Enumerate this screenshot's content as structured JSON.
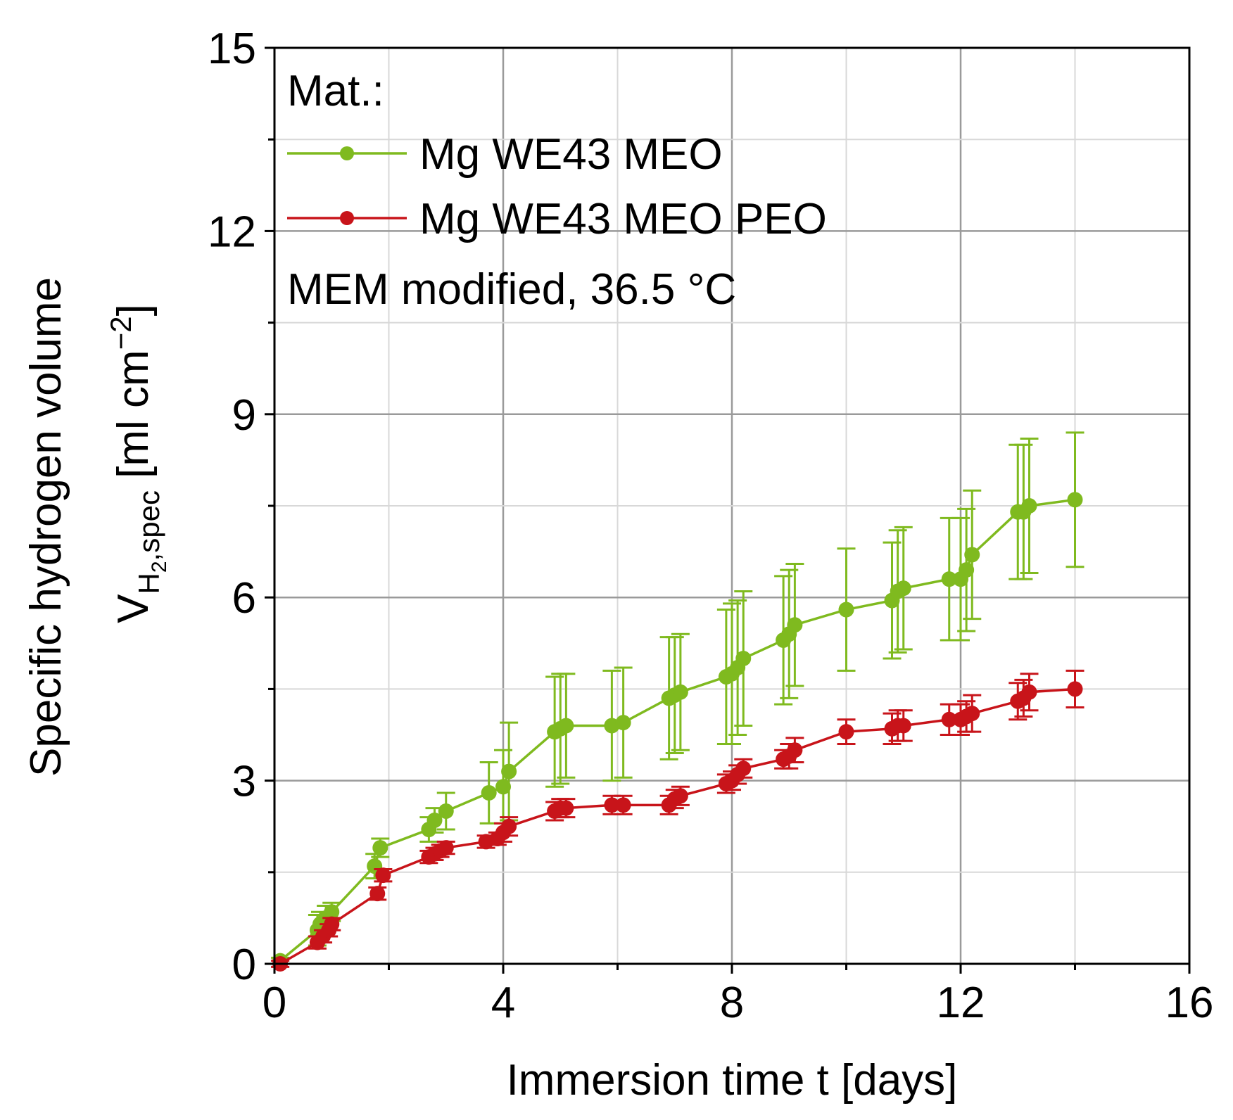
{
  "chart_data": {
    "type": "line",
    "xlabel": "Immersion time t [days]",
    "ylabel": {
      "line1": "Specific hydrogen volume",
      "line2_main": "V",
      "line2_sub_h": "H",
      "line2_sub_2": "2",
      "line2_sub_rest": ",spec",
      "line2_unit": " [ml cm",
      "line2_exp": "−2",
      "line2_close": "]"
    },
    "xlim": [
      0,
      16
    ],
    "ylim": [
      0,
      15
    ],
    "xticks": [
      "0",
      "4",
      "8",
      "12",
      "16"
    ],
    "yticks": [
      "0",
      "3",
      "6",
      "9",
      "12",
      "15"
    ],
    "grid": true,
    "legend": {
      "placement": "top-left",
      "header": "Mat.:",
      "footer": "MEM modified, 36.5 °C"
    },
    "series": [
      {
        "name": "Mg WE43 MEO",
        "color": "#7fba1f",
        "x": [
          0.1,
          0.75,
          0.8,
          0.9,
          1.0,
          1.75,
          1.85,
          2.7,
          2.8,
          3.0,
          3.75,
          4.0,
          4.1,
          4.9,
          5.0,
          5.1,
          5.9,
          6.1,
          6.9,
          7.0,
          7.1,
          7.9,
          8.0,
          8.1,
          8.2,
          8.9,
          9.0,
          9.1,
          10.0,
          10.8,
          10.9,
          11.0,
          11.8,
          12.0,
          12.1,
          12.2,
          13.0,
          13.1,
          13.2,
          14.0
        ],
        "y": [
          0.05,
          0.55,
          0.65,
          0.75,
          0.85,
          1.6,
          1.9,
          2.2,
          2.35,
          2.5,
          2.8,
          2.9,
          3.15,
          3.8,
          3.85,
          3.9,
          3.9,
          3.95,
          4.35,
          4.4,
          4.45,
          4.7,
          4.75,
          4.85,
          5.0,
          5.3,
          5.4,
          5.55,
          5.8,
          5.95,
          6.1,
          6.15,
          6.3,
          6.3,
          6.45,
          6.7,
          7.4,
          7.4,
          7.5,
          7.6
        ],
        "err": [
          0.05,
          0.25,
          0.2,
          0.2,
          0.15,
          0.2,
          0.15,
          0.2,
          0.2,
          0.3,
          0.5,
          0.6,
          0.8,
          0.9,
          0.9,
          0.85,
          0.9,
          0.9,
          1.0,
          0.95,
          0.95,
          1.1,
          1.15,
          1.1,
          1.1,
          1.05,
          1.05,
          1.0,
          1.0,
          0.95,
          1.0,
          1.0,
          1.0,
          1.0,
          1.0,
          1.05,
          1.1,
          1.1,
          1.1,
          1.1
        ]
      },
      {
        "name": "Mg WE43 MEO PEO",
        "color": "#c8141a",
        "x": [
          0.1,
          0.75,
          0.85,
          0.95,
          1.0,
          1.8,
          1.9,
          2.7,
          2.8,
          2.9,
          3.0,
          3.7,
          3.9,
          4.0,
          4.1,
          4.9,
          5.0,
          5.1,
          5.9,
          6.1,
          6.9,
          7.0,
          7.1,
          7.9,
          8.0,
          8.1,
          8.2,
          8.9,
          9.0,
          9.1,
          10.0,
          10.8,
          10.9,
          11.0,
          11.8,
          12.0,
          12.1,
          12.2,
          13.0,
          13.1,
          13.2,
          14.0
        ],
        "y": [
          0.0,
          0.35,
          0.45,
          0.55,
          0.65,
          1.15,
          1.45,
          1.75,
          1.8,
          1.85,
          1.9,
          2.0,
          2.05,
          2.15,
          2.25,
          2.5,
          2.55,
          2.55,
          2.6,
          2.6,
          2.6,
          2.7,
          2.75,
          2.95,
          3.0,
          3.1,
          3.2,
          3.35,
          3.4,
          3.5,
          3.8,
          3.85,
          3.9,
          3.9,
          4.0,
          4.0,
          4.05,
          4.1,
          4.3,
          4.35,
          4.45,
          4.5
        ],
        "err": [
          0.05,
          0.1,
          0.1,
          0.1,
          0.1,
          0.1,
          0.1,
          0.1,
          0.1,
          0.1,
          0.1,
          0.1,
          0.1,
          0.15,
          0.15,
          0.15,
          0.15,
          0.15,
          0.15,
          0.15,
          0.15,
          0.15,
          0.15,
          0.15,
          0.15,
          0.15,
          0.15,
          0.15,
          0.2,
          0.2,
          0.2,
          0.25,
          0.25,
          0.25,
          0.25,
          0.25,
          0.25,
          0.3,
          0.3,
          0.3,
          0.3,
          0.3
        ]
      }
    ]
  }
}
